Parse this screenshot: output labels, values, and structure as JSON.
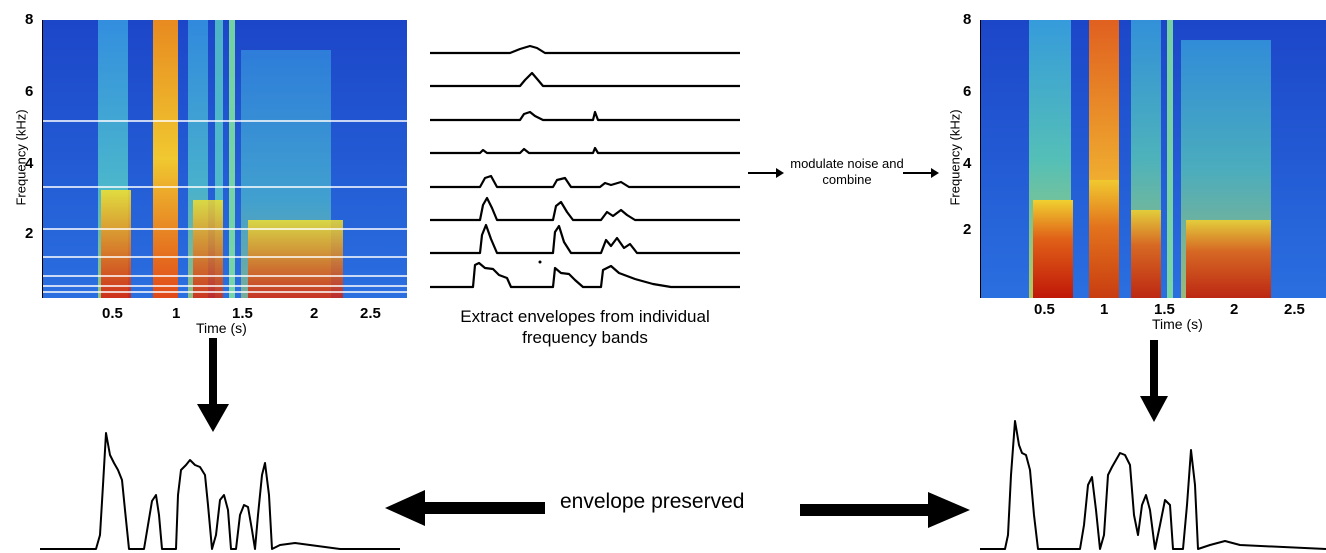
{
  "left_spectrogram": {
    "ylabel": "Frequency (kHz)",
    "xlabel": "Time (s)",
    "y_ticks": [
      "8",
      "6",
      "4",
      "2"
    ],
    "x_ticks": [
      "0.5",
      "1",
      "1.5",
      "2",
      "2.5"
    ]
  },
  "right_spectrogram": {
    "ylabel": "Frequency (kHz)",
    "xlabel": "Time (s)",
    "y_ticks": [
      "8",
      "6",
      "4",
      "2"
    ],
    "x_ticks": [
      "0.5",
      "1",
      "1.5",
      "2",
      "2.5"
    ]
  },
  "band_envelopes_caption": "Extract envelopes from individual frequency bands",
  "modulate_label": "modulate noise and combine",
  "preserved_label": "envelope preserved",
  "colors": {
    "colormap_low": "#1f4fd8",
    "colormap_mid": "#3ec7e0",
    "colormap_high": "#f0e030",
    "colormap_peak": "#d42010",
    "band_lines": "#ffffff",
    "envelope": "#000000"
  }
}
